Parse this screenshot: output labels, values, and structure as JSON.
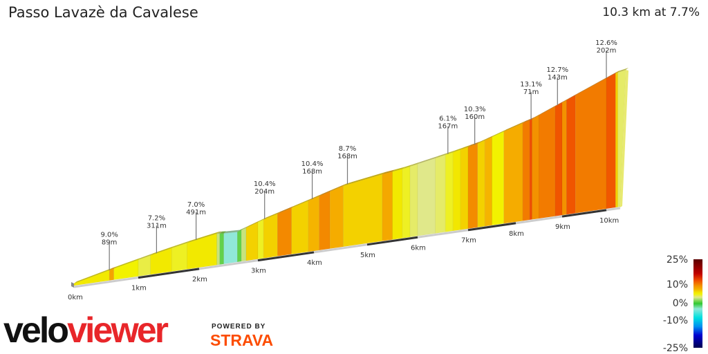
{
  "header": {
    "title": "Passo Lavazè da Cavalese",
    "summary": "10.3 km at 7.7%"
  },
  "logo": {
    "brand_part1": "velo",
    "brand_part2": "viewer",
    "powered_by": "POWERED BY",
    "strava": "STRAVA"
  },
  "chart_data": {
    "type": "area",
    "title": "Passo Lavazè da Cavalese",
    "total_km": 10.3,
    "x_ticks": [
      "0km",
      "1km",
      "2km",
      "3km",
      "4km",
      "5km",
      "6km",
      "7km",
      "8km",
      "9km",
      "10km"
    ],
    "segments": [
      [
        0,
        0.55,
        6
      ],
      [
        0.55,
        0.62,
        9
      ],
      [
        0.62,
        1.0,
        5.5
      ],
      [
        1.0,
        1.2,
        4.5
      ],
      [
        1.2,
        1.55,
        6
      ],
      [
        1.55,
        1.8,
        5
      ],
      [
        1.8,
        2.3,
        6
      ],
      [
        2.3,
        2.35,
        3
      ],
      [
        2.35,
        2.42,
        1
      ],
      [
        2.42,
        2.65,
        -3
      ],
      [
        2.65,
        2.72,
        1
      ],
      [
        2.72,
        2.8,
        3
      ],
      [
        2.8,
        3.0,
        7
      ],
      [
        3.0,
        3.1,
        5
      ],
      [
        3.1,
        3.35,
        7
      ],
      [
        3.35,
        3.6,
        10.4
      ],
      [
        3.6,
        3.9,
        7
      ],
      [
        3.9,
        4.1,
        8
      ],
      [
        4.1,
        4.3,
        10.4
      ],
      [
        4.3,
        4.55,
        8.5
      ],
      [
        4.55,
        5.3,
        7
      ],
      [
        5.3,
        5.5,
        8.7
      ],
      [
        5.5,
        5.7,
        6
      ],
      [
        5.7,
        5.85,
        5
      ],
      [
        5.85,
        6.0,
        4
      ],
      [
        6.0,
        6.35,
        3.5
      ],
      [
        6.35,
        6.55,
        4
      ],
      [
        6.55,
        6.7,
        5
      ],
      [
        6.7,
        6.85,
        6.1
      ],
      [
        6.85,
        7.0,
        7
      ],
      [
        7.0,
        7.2,
        10.3
      ],
      [
        7.2,
        7.35,
        7
      ],
      [
        7.35,
        7.5,
        8
      ],
      [
        7.5,
        7.75,
        5.5
      ],
      [
        7.75,
        8.15,
        8.5
      ],
      [
        8.15,
        8.3,
        11
      ],
      [
        8.3,
        8.35,
        13.1
      ],
      [
        8.35,
        8.5,
        10
      ],
      [
        8.5,
        8.85,
        11
      ],
      [
        8.85,
        9.0,
        12.7
      ],
      [
        9.0,
        9.1,
        10
      ],
      [
        9.1,
        9.3,
        12.7
      ],
      [
        9.3,
        10.0,
        11
      ],
      [
        10.0,
        10.2,
        12.6
      ],
      [
        10.2,
        10.25,
        7
      ],
      [
        10.25,
        10.3,
        4
      ]
    ],
    "annotations": [
      {
        "km": 0.55,
        "gradient": "9.0%",
        "length": "89m"
      },
      {
        "km": 1.3,
        "gradient": "7.2%",
        "length": "311m"
      },
      {
        "km": 1.95,
        "gradient": "7.0%",
        "length": "491m"
      },
      {
        "km": 3.12,
        "gradient": "10.4%",
        "length": "204m"
      },
      {
        "km": 3.97,
        "gradient": "10.4%",
        "length": "168m"
      },
      {
        "km": 4.63,
        "gradient": "8.7%",
        "length": "168m"
      },
      {
        "km": 6.6,
        "gradient": "6.1%",
        "length": "167m"
      },
      {
        "km": 7.14,
        "gradient": "10.3%",
        "length": "160m"
      },
      {
        "km": 8.33,
        "gradient": "13.1%",
        "length": "71m"
      },
      {
        "km": 8.9,
        "gradient": "12.7%",
        "length": "143m"
      },
      {
        "km": 10.0,
        "gradient": "12.6%",
        "length": "202m"
      }
    ],
    "colorbar": {
      "ticks": [
        "25%",
        "10%",
        "0%",
        "-10%",
        "-25%"
      ],
      "stops": [
        [
          "#5a0000",
          25
        ],
        [
          "#c00000",
          17
        ],
        [
          "#f04e00",
          13
        ],
        [
          "#f39200",
          10
        ],
        [
          "#f5b400",
          8
        ],
        [
          "#f2e000",
          6.5
        ],
        [
          "#f2f200",
          5.5
        ],
        [
          "#e0e88a",
          3.5
        ],
        [
          "#30c830",
          0
        ],
        [
          "#90e8d8",
          -3
        ],
        [
          "#00e0e0",
          -8
        ],
        [
          "#0090f0",
          -13
        ],
        [
          "#0000d0",
          -18
        ],
        [
          "#000050",
          -25
        ]
      ]
    }
  }
}
